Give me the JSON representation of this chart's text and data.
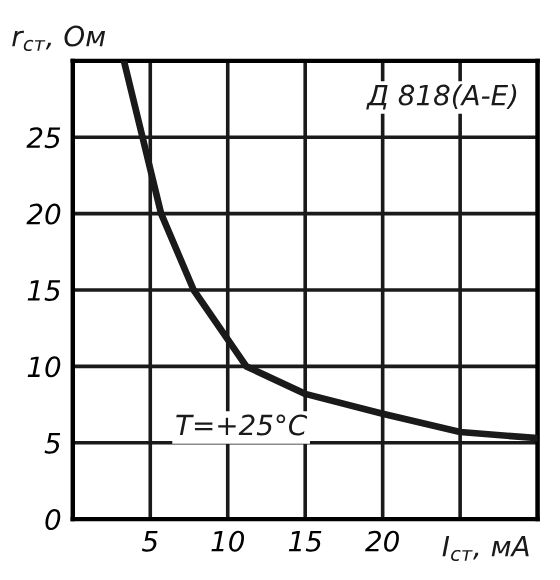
{
  "chart_data": {
    "type": "line",
    "xlabel": "I$_{ст}$, мА",
    "ylabel": "r$_{ст}$, Ом",
    "annotations": [
      "Д 818(А-Е)",
      "T=+25°C"
    ],
    "x": [
      3.3,
      4.5,
      5.7,
      7.8,
      11.2,
      15,
      20,
      25,
      30
    ],
    "series": [
      {
        "color": "#1a1a1a",
        "values": [
          30,
          25,
          20,
          15,
          10,
          8.2,
          6.9,
          5.7,
          5.3
        ]
      }
    ],
    "xlim": [
      0,
      30
    ],
    "ylim": [
      0,
      30
    ],
    "xticks": [
      {
        "value": 0,
        "label": null
      },
      5,
      10,
      15,
      20,
      {
        "value": 25,
        "label": null
      },
      {
        "value": 30,
        "label": null
      }
    ],
    "yticks": [
      0,
      5,
      10,
      15,
      20,
      25,
      {
        "value": 30,
        "label": null
      }
    ],
    "grid": true,
    "marker": "none",
    "line_style": "solid",
    "legend": false
  }
}
